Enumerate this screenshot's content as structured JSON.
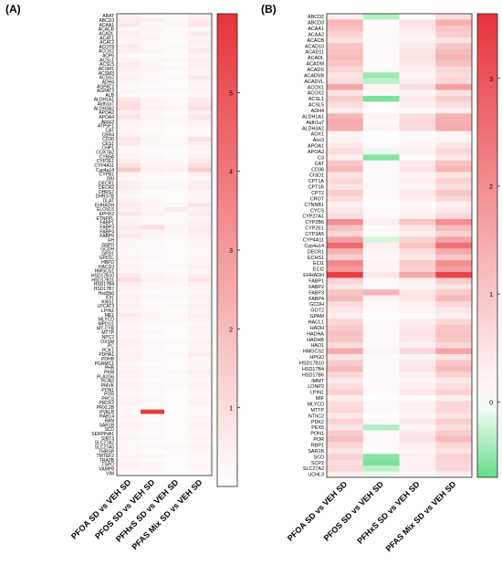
{
  "chart_data": [
    {
      "panel_label": "(A)",
      "type": "heatmap",
      "columns": [
        "PFOA SD vs VEH SD",
        "PFOS SD vs VEH SD",
        "PFHxS SD vs VEH SD",
        "PFAS Mix SD vs VEH SD"
      ],
      "rows": [
        "ABAT",
        "ABCD3",
        "ACAA1",
        "ACACB",
        "ACADL",
        "ACAT1",
        "ACAT2",
        "ACOT8",
        "ACOX2",
        "ACP6",
        "ACSL1",
        "ACSL5",
        "ACSM1",
        "ACSM3",
        "ACSS2",
        "ADH4",
        "AGPAT2",
        "AGPAT3",
        "ALB",
        "ALDH1A1",
        "Aldh1a7",
        "ALDH3A2",
        "APOA2",
        "APOA4",
        "Apoc3",
        "ATP5F1",
        "CAT",
        "CBR4",
        "CD36",
        "CES1",
        "CHP1",
        "COX7A2",
        "CYB5A",
        "CYP2E1",
        "CYP4A11",
        "Cyp4a14",
        "CYPB1",
        "DBI",
        "DECR1",
        "DECR2",
        "DHRS7",
        "DHRS7B",
        "DLAT",
        "EHHADH",
        "ELOVL5",
        "EPHX2",
        "ETNPPL",
        "FABP1",
        "FABP3",
        "FABP4",
        "FABP5",
        "FH",
        "G6PD",
        "GCDH",
        "GPD1",
        "GPD1L",
        "HBPD",
        "HACD3",
        "HMGCS1",
        "HSD17B10",
        "HSD17B11",
        "HSD17B4",
        "HSD17B7",
        "Hsd3b6",
        "IDI1",
        "KNG1",
        "LPCAT3",
        "LPIN1",
        "ME1",
        "MLYCD",
        "MPDU1",
        "MT-CYB",
        "MTTP",
        "NPC2",
        "OXSM",
        "PC",
        "PCK1",
        "PDHA1",
        "PDHB",
        "PGRMC1",
        "PHB",
        "PKM",
        "PLA2G6",
        "PLIN2",
        "PMVK",
        "PON1",
        "POR",
        "PPCS",
        "PRDX2",
        "PRXL2B",
        "PVALB",
        "RAB14",
        "RAN",
        "SAR1B",
        "SCD",
        "SERPINA1",
        "SIRT3",
        "SLC27A2",
        "SLC27A5",
        "THRSP",
        "TMTEF2",
        "TRA2B",
        "TSPO",
        "VAMP8",
        "VIM"
      ],
      "values": [
        [
          0.4,
          0.2,
          0.1,
          0.5
        ],
        [
          0.6,
          0.5,
          0.2,
          0.6
        ],
        [
          0.7,
          0.2,
          0.3,
          0.8
        ],
        [
          0.2,
          0.3,
          0.1,
          0.2
        ],
        [
          0.5,
          0.2,
          0.2,
          0.6
        ],
        [
          0.4,
          0.3,
          0.2,
          0.3
        ],
        [
          0.3,
          0.2,
          0.1,
          0.5
        ],
        [
          0.6,
          0.2,
          0.2,
          0.4
        ],
        [
          0.5,
          0.3,
          0.1,
          0.6
        ],
        [
          0.2,
          0.1,
          0.1,
          0.3
        ],
        [
          0.4,
          0.2,
          0.2,
          0.5
        ],
        [
          0.6,
          0.2,
          0.1,
          0.5
        ],
        [
          0.5,
          0.3,
          0.2,
          0.4
        ],
        [
          0.3,
          0.2,
          0.1,
          0.3
        ],
        [
          0.4,
          0.2,
          0.2,
          0.6
        ],
        [
          0.3,
          0.2,
          0.1,
          0.4
        ],
        [
          0.2,
          0.1,
          0.1,
          0.3
        ],
        [
          0.3,
          0.2,
          0.2,
          0.3
        ],
        [
          0.1,
          0.1,
          0.1,
          0.2
        ],
        [
          0.7,
          0.3,
          0.2,
          0.6
        ],
        [
          0.9,
          0.3,
          0.2,
          0.7
        ],
        [
          1.0,
          0.4,
          0.3,
          0.9
        ],
        [
          0.5,
          0.2,
          0.1,
          0.4
        ],
        [
          0.8,
          0.3,
          0.2,
          0.7
        ],
        [
          0.4,
          0.2,
          0.2,
          0.5
        ],
        [
          0.3,
          0.2,
          0.1,
          0.3
        ],
        [
          0.2,
          0.1,
          0.1,
          0.2
        ],
        [
          0.4,
          0.2,
          0.1,
          0.3
        ],
        [
          0.8,
          0.3,
          0.2,
          0.9
        ],
        [
          0.6,
          0.2,
          0.2,
          0.5
        ],
        [
          0.3,
          0.1,
          0.1,
          0.3
        ],
        [
          0.2,
          0.1,
          0.1,
          0.2
        ],
        [
          0.3,
          0.2,
          0.1,
          0.4
        ],
        [
          0.5,
          0.2,
          0.2,
          0.6
        ],
        [
          0.9,
          0.3,
          0.3,
          1.0
        ],
        [
          1.6,
          0.5,
          0.4,
          1.5
        ],
        [
          0.4,
          0.2,
          0.1,
          0.5
        ],
        [
          0.2,
          0.1,
          0.1,
          0.2
        ],
        [
          0.5,
          0.2,
          0.2,
          0.5
        ],
        [
          0.6,
          0.3,
          0.2,
          0.6
        ],
        [
          0.3,
          0.1,
          0.1,
          0.3
        ],
        [
          0.2,
          0.1,
          0.1,
          0.2
        ],
        [
          0.4,
          0.2,
          0.1,
          0.3
        ],
        [
          0.6,
          0.3,
          0.2,
          0.7
        ],
        [
          0.5,
          0.2,
          0.6,
          0.4
        ],
        [
          0.7,
          0.4,
          0.2,
          0.6
        ],
        [
          0.3,
          0.2,
          0.2,
          0.3
        ],
        [
          0.4,
          0.2,
          0.2,
          0.5
        ],
        [
          0.6,
          1.0,
          0.3,
          0.5
        ],
        [
          0.5,
          0.4,
          0.2,
          0.6
        ],
        [
          0.7,
          0.3,
          0.2,
          0.4
        ],
        [
          0.3,
          0.2,
          0.1,
          0.3
        ],
        [
          0.2,
          0.2,
          0.1,
          0.2
        ],
        [
          0.3,
          0.1,
          0.1,
          0.3
        ],
        [
          0.2,
          0.1,
          0.1,
          0.2
        ],
        [
          0.3,
          0.2,
          0.1,
          0.3
        ],
        [
          0.2,
          0.1,
          0.1,
          0.2
        ],
        [
          0.4,
          0.2,
          0.2,
          0.5
        ],
        [
          0.3,
          0.2,
          0.1,
          0.3
        ],
        [
          0.6,
          0.3,
          0.2,
          0.5
        ],
        [
          0.9,
          0.4,
          0.3,
          0.8
        ],
        [
          0.5,
          0.2,
          0.2,
          0.4
        ],
        [
          0.3,
          0.2,
          0.1,
          0.3
        ],
        [
          0.2,
          0.1,
          0.1,
          0.2
        ],
        [
          0.4,
          0.2,
          0.2,
          0.4
        ],
        [
          0.3,
          0.1,
          0.1,
          0.3
        ],
        [
          0.5,
          0.2,
          0.2,
          0.4
        ],
        [
          0.3,
          0.2,
          0.1,
          0.3
        ],
        [
          0.6,
          0.3,
          0.2,
          0.5
        ],
        [
          0.4,
          0.2,
          0.2,
          0.4
        ],
        [
          0.3,
          0.1,
          0.1,
          0.2
        ],
        [
          0.2,
          0.1,
          0.1,
          0.3
        ],
        [
          0.3,
          0.2,
          0.1,
          0.3
        ],
        [
          0.2,
          0.1,
          0.1,
          0.2
        ],
        [
          0.5,
          0.2,
          0.2,
          0.4
        ],
        [
          0.4,
          0.2,
          0.1,
          0.3
        ],
        [
          0.3,
          0.2,
          0.1,
          0.3
        ],
        [
          0.5,
          0.2,
          0.2,
          0.6
        ],
        [
          0.4,
          0.2,
          0.1,
          0.3
        ],
        [
          0.2,
          0.1,
          0.1,
          0.2
        ],
        [
          0.3,
          0.2,
          0.1,
          0.3
        ],
        [
          0.4,
          0.2,
          0.2,
          0.5
        ],
        [
          0.3,
          0.2,
          0.1,
          0.3
        ],
        [
          0.2,
          0.1,
          0.1,
          0.2
        ],
        [
          0.4,
          0.2,
          0.2,
          0.4
        ],
        [
          0.3,
          0.2,
          0.1,
          0.3
        ],
        [
          0.2,
          0.1,
          0.1,
          0.2
        ],
        [
          0.3,
          0.2,
          0.1,
          0.3
        ],
        [
          0.4,
          0.2,
          0.1,
          0.4
        ],
        [
          0.2,
          0.1,
          0.1,
          0.2
        ],
        [
          0.2,
          5.8,
          0.1,
          0.2
        ],
        [
          0.3,
          0.2,
          0.1,
          0.3
        ],
        [
          0.2,
          0.1,
          0.1,
          0.2
        ],
        [
          0.4,
          0.2,
          0.1,
          0.4
        ],
        [
          0.3,
          0.2,
          0.1,
          0.3
        ],
        [
          0.2,
          0.1,
          0.1,
          0.2
        ],
        [
          0.3,
          0.2,
          0.1,
          0.3
        ],
        [
          0.2,
          0.1,
          0.1,
          0.2
        ],
        [
          0.3,
          0.2,
          0.2,
          0.4
        ],
        [
          0.2,
          0.1,
          0.1,
          0.2
        ],
        [
          0.3,
          0.3,
          0.1,
          0.2
        ],
        [
          0.2,
          0.1,
          0.1,
          0.2
        ],
        [
          0.4,
          0.2,
          0.1,
          0.3
        ],
        [
          0.2,
          0.2,
          0.1,
          0.2
        ]
      ],
      "colorbar": {
        "ticks": [
          1,
          2,
          3,
          4,
          5
        ],
        "range": [
          0,
          6
        ]
      },
      "colors": {
        "low": "#ffffff",
        "high": "#e8333a"
      }
    },
    {
      "panel_label": "(B)",
      "type": "heatmap",
      "columns": [
        "PFOA SD vs VEH SD",
        "PFOS SD vs VEH SD",
        "PFHxS SD vs VEH SD",
        "PFAS Mix SD vs VEH SD"
      ],
      "rows": [
        "ABCD2",
        "ABCD3",
        "ACAA1",
        "ACAA2",
        "ACACB",
        "ACAD10",
        "ACAD11",
        "ACADL",
        "ACADM",
        "ACADS",
        "ACADSB",
        "ACADVL",
        "ACOX1",
        "ACOX2",
        "ACSL1",
        "ACSL5",
        "ADH4",
        "ALDH1A1",
        "Aldh1a7",
        "ALDH3A2",
        "AOX1",
        "Aox3",
        "APOA1",
        "APOA2",
        "C3",
        "CAT",
        "CD36",
        "CISD1",
        "CPT1A",
        "CPT1B",
        "CPT2",
        "CROT",
        "CTNNB1",
        "CYCS",
        "CYP27A1",
        "CYP2B6",
        "CYP2E1",
        "CYP3A5",
        "CYP4A11",
        "Cyp4a14",
        "DECR1",
        "ECHS1",
        "ECI1",
        "ECI2",
        "EHHADH",
        "FABP1",
        "FABP2",
        "FABP3",
        "FABP4",
        "GCDH",
        "GOT2",
        "GPAM",
        "HACL1",
        "HADH",
        "HADHA",
        "HADHB",
        "HAO1",
        "HMGCS2",
        "HPGD",
        "HSD17B10",
        "HSD17B4",
        "HSD17B6",
        "IMMT",
        "LONP2",
        "LPIN1",
        "MIF",
        "MLYCD",
        "MTTP",
        "NT5C2",
        "PDK2",
        "PEX5",
        "PON1",
        "POR",
        "RBP1",
        "SAR1B",
        "SCD",
        "SCP2",
        "SLC27A2",
        "UCHL3"
      ],
      "values": [
        [
          0.3,
          -0.35,
          0.1,
          0.6
        ],
        [
          1.3,
          0.1,
          0.5,
          1.4
        ],
        [
          1.1,
          0.1,
          0.4,
          1.0
        ],
        [
          0.8,
          0.1,
          0.3,
          0.9
        ],
        [
          0.5,
          0.1,
          0.2,
          0.5
        ],
        [
          1.0,
          0.1,
          0.4,
          1.0
        ],
        [
          1.1,
          0.1,
          0.5,
          1.2
        ],
        [
          1.2,
          0.1,
          0.5,
          1.3
        ],
        [
          1.0,
          0.1,
          0.4,
          1.1
        ],
        [
          0.7,
          0.1,
          0.3,
          0.7
        ],
        [
          0.5,
          -0.45,
          0.2,
          0.6
        ],
        [
          0.6,
          -0.3,
          0.3,
          0.7
        ],
        [
          1.6,
          0.2,
          0.6,
          1.7
        ],
        [
          0.5,
          0.1,
          0.2,
          0.5
        ],
        [
          0.9,
          -0.6,
          0.4,
          0.9
        ],
        [
          0.6,
          0.1,
          0.3,
          0.6
        ],
        [
          0.3,
          0.0,
          0.1,
          0.3
        ],
        [
          1.3,
          0.2,
          0.6,
          1.4
        ],
        [
          1.5,
          0.1,
          0.7,
          1.4
        ],
        [
          1.4,
          0.2,
          0.6,
          1.5
        ],
        [
          0.2,
          0.0,
          0.1,
          0.2
        ],
        [
          0.2,
          0.0,
          0.1,
          0.2
        ],
        [
          0.4,
          0.1,
          0.2,
          0.5
        ],
        [
          0.6,
          -0.1,
          0.3,
          0.7
        ],
        [
          0.3,
          -0.55,
          0.1,
          0.4
        ],
        [
          1.0,
          0.1,
          0.4,
          1.1
        ],
        [
          1.2,
          0.1,
          0.5,
          1.3
        ],
        [
          0.5,
          0.1,
          0.2,
          0.5
        ],
        [
          0.7,
          0.1,
          0.3,
          0.8
        ],
        [
          0.5,
          0.1,
          0.2,
          0.6
        ],
        [
          0.9,
          0.1,
          0.4,
          1.0
        ],
        [
          0.6,
          0.1,
          0.3,
          0.7
        ],
        [
          0.3,
          0.0,
          0.1,
          0.3
        ],
        [
          0.4,
          0.1,
          0.2,
          0.4
        ],
        [
          0.6,
          0.1,
          0.3,
          0.7
        ],
        [
          2.0,
          0.3,
          1.0,
          2.0
        ],
        [
          1.1,
          0.1,
          0.5,
          1.2
        ],
        [
          0.7,
          0.1,
          0.3,
          0.8
        ],
        [
          1.7,
          -0.2,
          0.8,
          1.6
        ],
        [
          2.6,
          0.3,
          1.1,
          2.5
        ],
        [
          1.4,
          0.2,
          0.6,
          1.5
        ],
        [
          0.9,
          0.1,
          0.4,
          1.0
        ],
        [
          2.1,
          0.2,
          0.9,
          2.0
        ],
        [
          1.8,
          0.2,
          0.8,
          1.7
        ],
        [
          3.4,
          0.4,
          1.5,
          3.3
        ],
        [
          0.8,
          0.1,
          0.3,
          0.9
        ],
        [
          0.5,
          0.1,
          0.2,
          0.5
        ],
        [
          1.0,
          1.3,
          0.5,
          0.9
        ],
        [
          1.2,
          0.2,
          0.5,
          1.2
        ],
        [
          0.6,
          0.1,
          0.3,
          0.7
        ],
        [
          0.4,
          0.1,
          0.2,
          0.4
        ],
        [
          0.3,
          0.0,
          0.1,
          0.3
        ],
        [
          0.7,
          0.1,
          0.3,
          0.7
        ],
        [
          0.9,
          0.1,
          0.4,
          1.0
        ],
        [
          1.1,
          0.1,
          0.5,
          1.1
        ],
        [
          1.0,
          0.1,
          0.4,
          1.0
        ],
        [
          0.6,
          0.1,
          0.3,
          0.7
        ],
        [
          1.5,
          0.2,
          0.7,
          1.6
        ],
        [
          0.5,
          0.1,
          0.2,
          0.5
        ],
        [
          0.9,
          0.1,
          0.4,
          1.0
        ],
        [
          1.2,
          0.1,
          0.5,
          1.2
        ],
        [
          0.7,
          0.1,
          0.3,
          0.8
        ],
        [
          0.4,
          0.1,
          0.2,
          0.4
        ],
        [
          0.6,
          0.1,
          0.3,
          0.6
        ],
        [
          0.8,
          0.1,
          0.4,
          0.8
        ],
        [
          0.3,
          0.0,
          0.1,
          0.3
        ],
        [
          0.6,
          0.1,
          0.3,
          0.7
        ],
        [
          0.7,
          0.1,
          0.3,
          0.7
        ],
        [
          0.4,
          0.0,
          0.2,
          0.5
        ],
        [
          0.8,
          0.1,
          0.4,
          0.9
        ],
        [
          0.5,
          -0.35,
          0.2,
          0.6
        ],
        [
          0.9,
          0.1,
          0.4,
          0.9
        ],
        [
          1.1,
          0.1,
          0.5,
          1.2
        ],
        [
          0.7,
          0.1,
          0.3,
          0.7
        ],
        [
          0.5,
          0.0,
          0.2,
          0.5
        ],
        [
          0.8,
          -0.55,
          0.3,
          0.8
        ],
        [
          0.6,
          -0.6,
          0.3,
          0.7
        ],
        [
          0.7,
          -0.3,
          0.3,
          0.7
        ],
        [
          0.3,
          -0.1,
          0.1,
          0.3
        ]
      ],
      "colorbar": {
        "ticks": [
          0,
          1,
          2,
          3
        ],
        "range": [
          -0.7,
          3.6
        ]
      },
      "colors": {
        "low": "#66dd88",
        "mid": "#ffffff",
        "high": "#e8333a"
      }
    }
  ]
}
